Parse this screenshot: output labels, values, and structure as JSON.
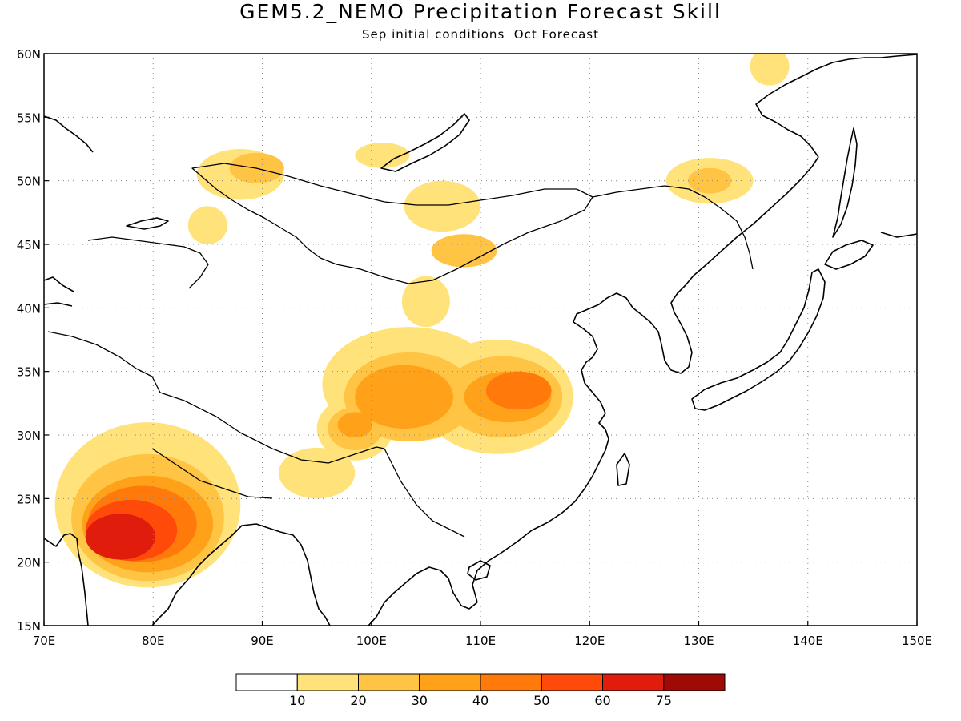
{
  "title": "GEM5.2_NEMO Precipitation Forecast Skill",
  "subtitle": "Sep initial conditions  Oct Forecast",
  "map": {
    "lon_range": [
      70,
      150
    ],
    "lat_range": [
      15,
      60
    ],
    "lon_ticks": [
      70,
      80,
      90,
      100,
      110,
      120,
      130,
      140,
      150
    ],
    "lon_labels": [
      "70E",
      "80E",
      "90E",
      "100E",
      "110E",
      "120E",
      "130E",
      "140E",
      "150E"
    ],
    "lat_ticks": [
      15,
      20,
      25,
      30,
      35,
      40,
      45,
      50,
      55,
      60
    ],
    "lat_labels": [
      "15N",
      "20N",
      "25N",
      "30N",
      "35N",
      "40N",
      "45N",
      "50N",
      "55N",
      "60N"
    ],
    "grid": "dotted"
  },
  "colorbar": {
    "colors": [
      "#ffffff",
      "#ffe37a",
      "#ffc444",
      "#ffa21a",
      "#ff7a0a",
      "#ff4a0a",
      "#e01c0c",
      "#a00a06"
    ],
    "labels": [
      "10",
      "20",
      "30",
      "40",
      "50",
      "60",
      "75"
    ]
  },
  "skill_regions": [
    {
      "level": 1,
      "lon": 79.5,
      "lat": 24.5,
      "rlon": 8.5,
      "rlat": 6.5
    },
    {
      "level": 2,
      "lon": 79.5,
      "lat": 23.5,
      "rlon": 7.0,
      "rlat": 5.0
    },
    {
      "level": 3,
      "lon": 79.5,
      "lat": 23.0,
      "rlon": 6.0,
      "rlat": 3.8
    },
    {
      "level": 4,
      "lon": 79.0,
      "lat": 23.0,
      "rlon": 5.0,
      "rlat": 3.0
    },
    {
      "level": 5,
      "lon": 78.0,
      "lat": 22.5,
      "rlon": 4.2,
      "rlat": 2.4
    },
    {
      "level": 6,
      "lon": 77.0,
      "lat": 22.0,
      "rlon": 3.2,
      "rlat": 1.8
    },
    {
      "level": 1,
      "lon": 95.0,
      "lat": 27.0,
      "rlon": 3.5,
      "rlat": 2.0
    },
    {
      "level": 1,
      "lon": 88.0,
      "lat": 50.5,
      "rlon": 4.0,
      "rlat": 2.0
    },
    {
      "level": 2,
      "lon": 89.5,
      "lat": 51.0,
      "rlon": 2.5,
      "rlat": 1.2
    },
    {
      "level": 1,
      "lon": 85.0,
      "lat": 46.5,
      "rlon": 1.8,
      "rlat": 1.5
    },
    {
      "level": 1,
      "lon": 101.0,
      "lat": 52.0,
      "rlon": 2.5,
      "rlat": 1.0
    },
    {
      "level": 1,
      "lon": 106.5,
      "lat": 48.0,
      "rlon": 3.5,
      "rlat": 2.0
    },
    {
      "level": 2,
      "lon": 108.5,
      "lat": 44.5,
      "rlon": 3.0,
      "rlat": 1.3
    },
    {
      "level": 1,
      "lon": 131.0,
      "lat": 50.0,
      "rlon": 4.0,
      "rlat": 1.8
    },
    {
      "level": 2,
      "lon": 131.0,
      "lat": 50.0,
      "rlon": 2.0,
      "rlat": 1.0
    },
    {
      "level": 1,
      "lon": 136.5,
      "lat": 59.0,
      "rlon": 1.8,
      "rlat": 1.5
    },
    {
      "level": 1,
      "lon": 103.5,
      "lat": 34.0,
      "rlon": 8.0,
      "rlat": 4.5
    },
    {
      "level": 2,
      "lon": 103.5,
      "lat": 33.0,
      "rlon": 6.0,
      "rlat": 3.5
    },
    {
      "level": 3,
      "lon": 103.0,
      "lat": 33.0,
      "rlon": 4.5,
      "rlat": 2.5
    },
    {
      "level": 1,
      "lon": 111.5,
      "lat": 33.0,
      "rlon": 7.0,
      "rlat": 4.5
    },
    {
      "level": 2,
      "lon": 112.0,
      "lat": 33.0,
      "rlon": 5.5,
      "rlat": 3.2
    },
    {
      "level": 3,
      "lon": 112.5,
      "lat": 33.0,
      "rlon": 4.0,
      "rlat": 2.0
    },
    {
      "level": 4,
      "lon": 113.5,
      "lat": 33.5,
      "rlon": 3.0,
      "rlat": 1.5
    },
    {
      "level": 1,
      "lon": 98.5,
      "lat": 30.5,
      "rlon": 3.5,
      "rlat": 2.5
    },
    {
      "level": 2,
      "lon": 98.5,
      "lat": 30.5,
      "rlon": 2.5,
      "rlat": 1.7
    },
    {
      "level": 3,
      "lon": 98.5,
      "lat": 30.8,
      "rlon": 1.6,
      "rlat": 1.0
    },
    {
      "level": 1,
      "lon": 105.0,
      "lat": 40.5,
      "rlon": 2.2,
      "rlat": 2.0
    }
  ]
}
